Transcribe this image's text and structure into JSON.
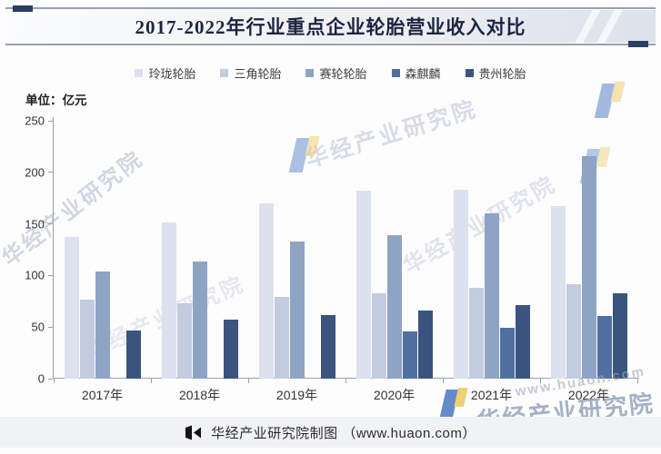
{
  "header": {
    "title": "2017-2022年行业重点企业轮胎营业收入对比"
  },
  "unit_label": "单位：亿元",
  "chart_data": {
    "type": "bar",
    "title": "2017-2022年行业重点企业轮胎营业收入对比",
    "unit": "亿元",
    "categories": [
      "2017年",
      "2018年",
      "2019年",
      "2020年",
      "2021年",
      "2022年"
    ],
    "series": [
      {
        "name": "玲珑轮胎",
        "color": "#dce1ed",
        "values": [
          137,
          151,
          170,
          182,
          183,
          167
        ]
      },
      {
        "name": "三角轮胎",
        "color": "#c3ccde",
        "values": [
          77,
          73,
          79,
          83,
          88,
          92
        ]
      },
      {
        "name": "赛轮轮胎",
        "color": "#8fa3c4",
        "values": [
          104,
          114,
          133,
          139,
          160,
          216
        ]
      },
      {
        "name": "森麒麟",
        "color": "#52709f",
        "values": [
          null,
          null,
          null,
          46,
          49,
          61
        ]
      },
      {
        "name": "贵州轮胎",
        "color": "#3a547e",
        "values": [
          47,
          57,
          62,
          66,
          71,
          83
        ]
      }
    ],
    "ylim": [
      0,
      250
    ],
    "yticks": [
      0,
      50,
      100,
      150,
      200,
      250
    ],
    "legend_position": "top",
    "grid": false
  },
  "footer": {
    "credit": "华经产业研究院制图",
    "site": "（www.huaon.com）"
  },
  "watermarks": {
    "brand": "华经产业研究院",
    "url": "www.huaon.com"
  },
  "colors": {
    "title_text": "#1c2540",
    "header_accent": "#2c3e63",
    "axis": "#9aa1ab",
    "logo_blue": "#4a78c2",
    "logo_yellow": "#eec85e"
  }
}
